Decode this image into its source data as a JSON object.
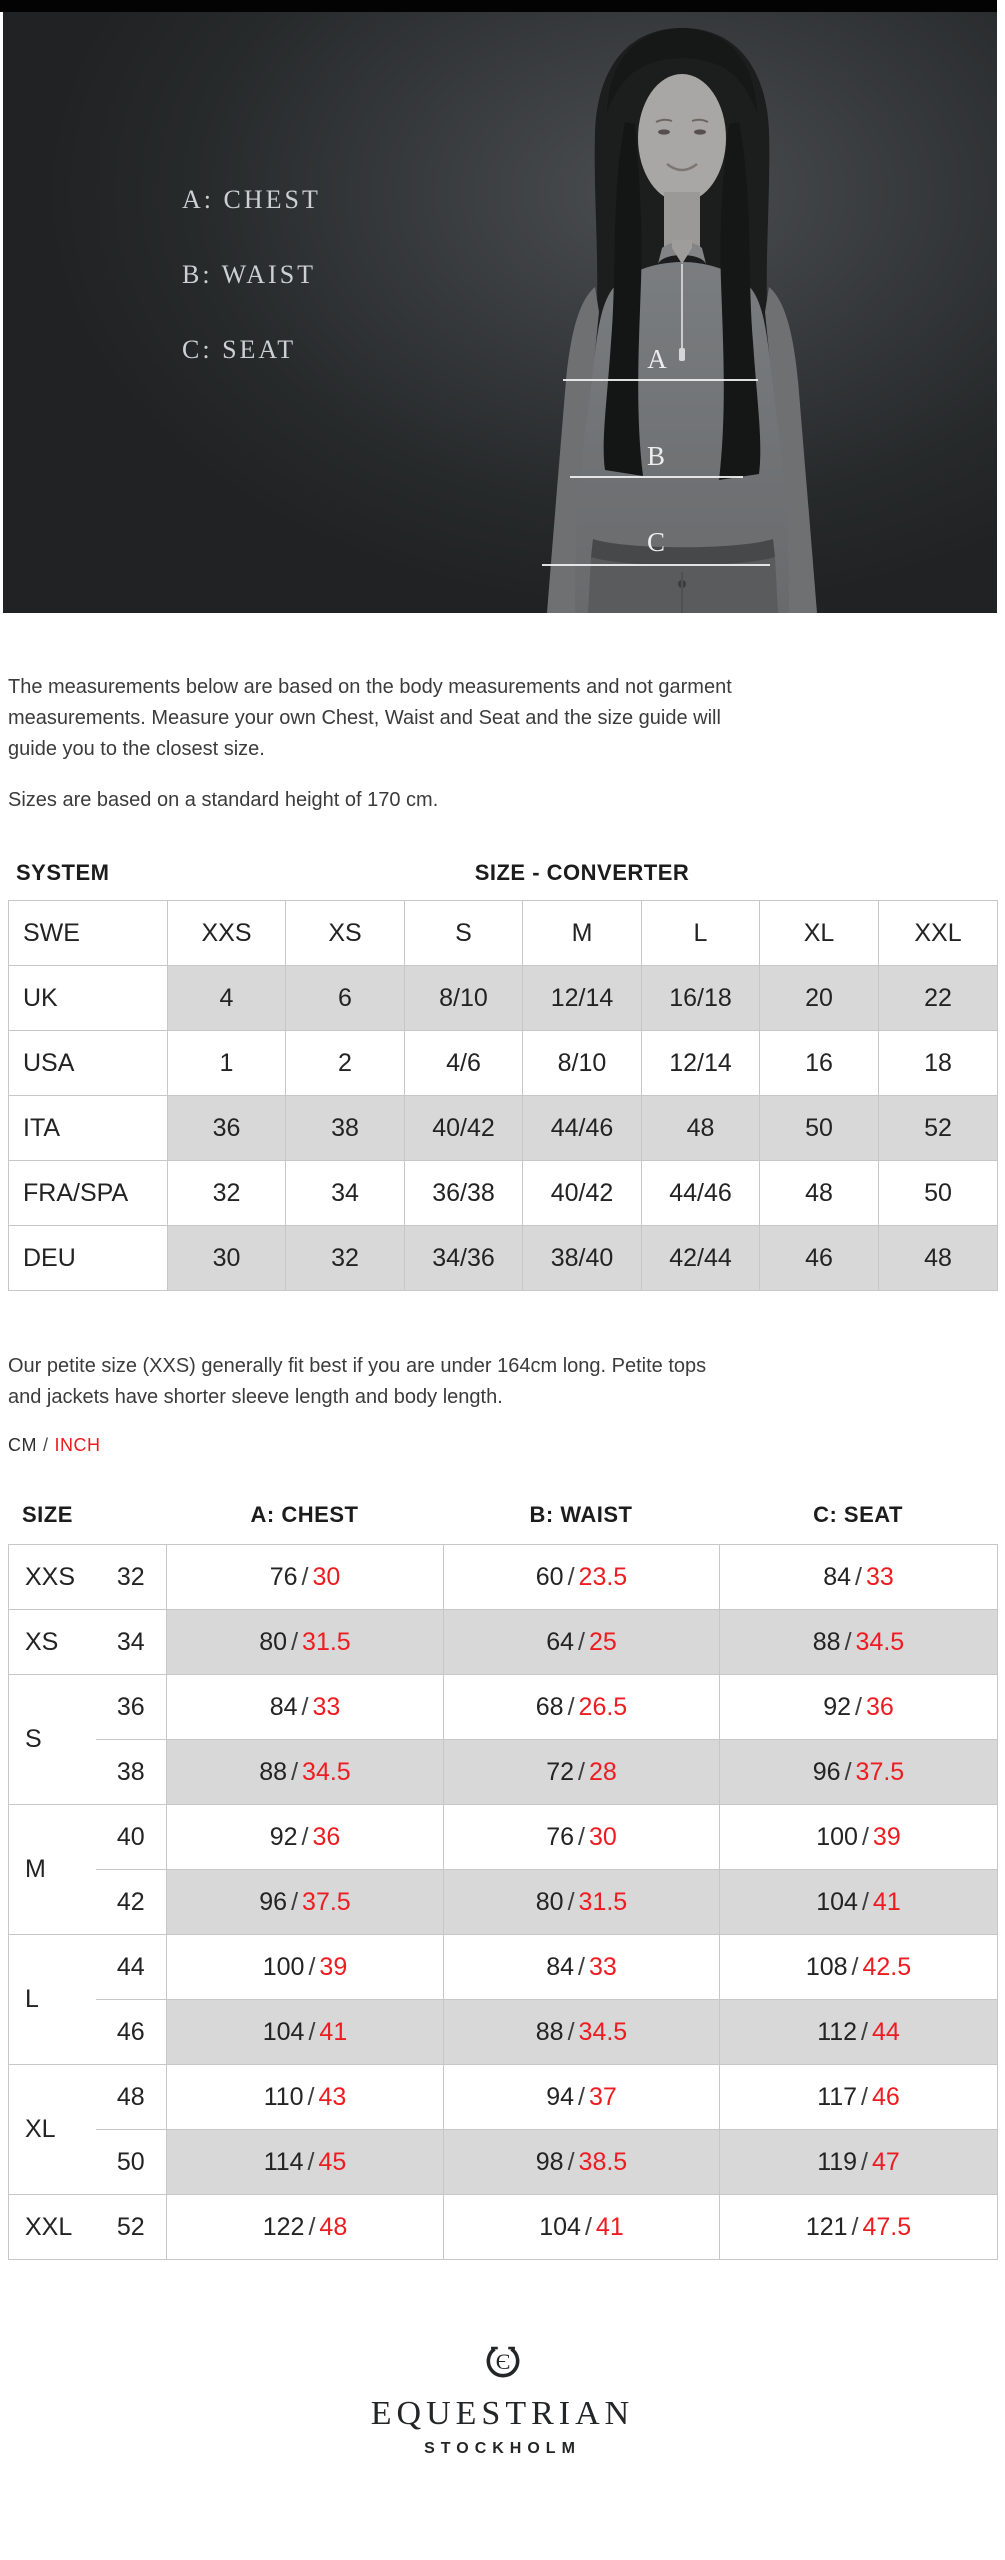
{
  "hero": {
    "legend": [
      "A: CHEST",
      "B: WAIST",
      "C: SEAT"
    ],
    "markers": [
      "A",
      "B",
      "C"
    ]
  },
  "intro": {
    "p1": "The measurements below are based on the body measurements and not garment\nmeasurements. Measure your own Chest, Waist and Seat and the size guide will\nguide you to the closest size.",
    "p2": "Sizes are based on a standard height of 170 cm."
  },
  "converter": {
    "system_label": "SYSTEM",
    "title": "SIZE - CONVERTER",
    "header": {
      "label": "SWE",
      "values": [
        "XXS",
        "XS",
        "S",
        "M",
        "L",
        "XL",
        "XXL"
      ]
    },
    "rows": [
      {
        "label": "UK",
        "values": [
          "4",
          "6",
          "8/10",
          "12/14",
          "16/18",
          "20",
          "22"
        ],
        "shaded": true
      },
      {
        "label": "USA",
        "values": [
          "1",
          "2",
          "4/6",
          "8/10",
          "12/14",
          "16",
          "18"
        ],
        "shaded": false
      },
      {
        "label": "ITA",
        "values": [
          "36",
          "38",
          "40/42",
          "44/46",
          "48",
          "50",
          "52"
        ],
        "shaded": true
      },
      {
        "label": "FRA/SPA",
        "values": [
          "32",
          "34",
          "36/38",
          "40/42",
          "44/46",
          "48",
          "50"
        ],
        "shaded": false
      },
      {
        "label": "DEU",
        "values": [
          "30",
          "32",
          "34/36",
          "38/40",
          "42/44",
          "46",
          "48"
        ],
        "shaded": true
      }
    ]
  },
  "petite_note": "Our petite size (XXS) generally fit best if you are under 164cm long. Petite tops\nand jackets have shorter sleeve length and body length.",
  "units": {
    "cm": "CM",
    "sep": "/",
    "inch": "INCH"
  },
  "measurements": {
    "headers": [
      "SIZE",
      "A: CHEST",
      "B: WAIST",
      "C: SEAT"
    ],
    "rows": [
      {
        "label": "XXS",
        "span": 1,
        "num": "32",
        "shaded": false,
        "sub": false,
        "cells": [
          [
            "76",
            "30"
          ],
          [
            "60",
            "23.5"
          ],
          [
            "84",
            "33"
          ]
        ]
      },
      {
        "label": "XS",
        "span": 1,
        "num": "34",
        "shaded": true,
        "sub": false,
        "cells": [
          [
            "80",
            "31.5"
          ],
          [
            "64",
            "25"
          ],
          [
            "88",
            "34.5"
          ]
        ]
      },
      {
        "label": "S",
        "span": 2,
        "num": "36",
        "shaded": false,
        "sub": false,
        "cells": [
          [
            "84",
            "33"
          ],
          [
            "68",
            "26.5"
          ],
          [
            "92",
            "36"
          ]
        ]
      },
      {
        "num": "38",
        "shaded": true,
        "sub": true,
        "cells": [
          [
            "88",
            "34.5"
          ],
          [
            "72",
            "28"
          ],
          [
            "96",
            "37.5"
          ]
        ]
      },
      {
        "label": "M",
        "span": 2,
        "num": "40",
        "shaded": false,
        "sub": false,
        "cells": [
          [
            "92",
            "36"
          ],
          [
            "76",
            "30"
          ],
          [
            "100",
            "39"
          ]
        ]
      },
      {
        "num": "42",
        "shaded": true,
        "sub": true,
        "cells": [
          [
            "96",
            "37.5"
          ],
          [
            "80",
            "31.5"
          ],
          [
            "104",
            "41"
          ]
        ]
      },
      {
        "label": "L",
        "span": 2,
        "num": "44",
        "shaded": false,
        "sub": false,
        "cells": [
          [
            "100",
            "39"
          ],
          [
            "84",
            "33"
          ],
          [
            "108",
            "42.5"
          ]
        ]
      },
      {
        "num": "46",
        "shaded": true,
        "sub": true,
        "cells": [
          [
            "104",
            "41"
          ],
          [
            "88",
            "34.5"
          ],
          [
            "112",
            "44"
          ]
        ]
      },
      {
        "label": "XL",
        "span": 2,
        "num": "48",
        "shaded": false,
        "sub": false,
        "cells": [
          [
            "110",
            "43"
          ],
          [
            "94",
            "37"
          ],
          [
            "117",
            "46"
          ]
        ]
      },
      {
        "num": "50",
        "shaded": true,
        "sub": true,
        "cells": [
          [
            "114",
            "45"
          ],
          [
            "98",
            "38.5"
          ],
          [
            "119",
            "47"
          ]
        ]
      },
      {
        "label": "XXL",
        "span": 1,
        "num": "52",
        "shaded": false,
        "sub": false,
        "cells": [
          [
            "122",
            "48"
          ],
          [
            "104",
            "41"
          ],
          [
            "121",
            "47.5"
          ]
        ]
      }
    ]
  },
  "footer": {
    "monogram": "Є",
    "brand": "EQUESTRIAN",
    "sub_brand": "STOCKHOLM"
  },
  "colors": {
    "accent_red": "#ee1b20",
    "shaded_row": "#d8d8d8",
    "table_border": "#c7c7c7"
  }
}
